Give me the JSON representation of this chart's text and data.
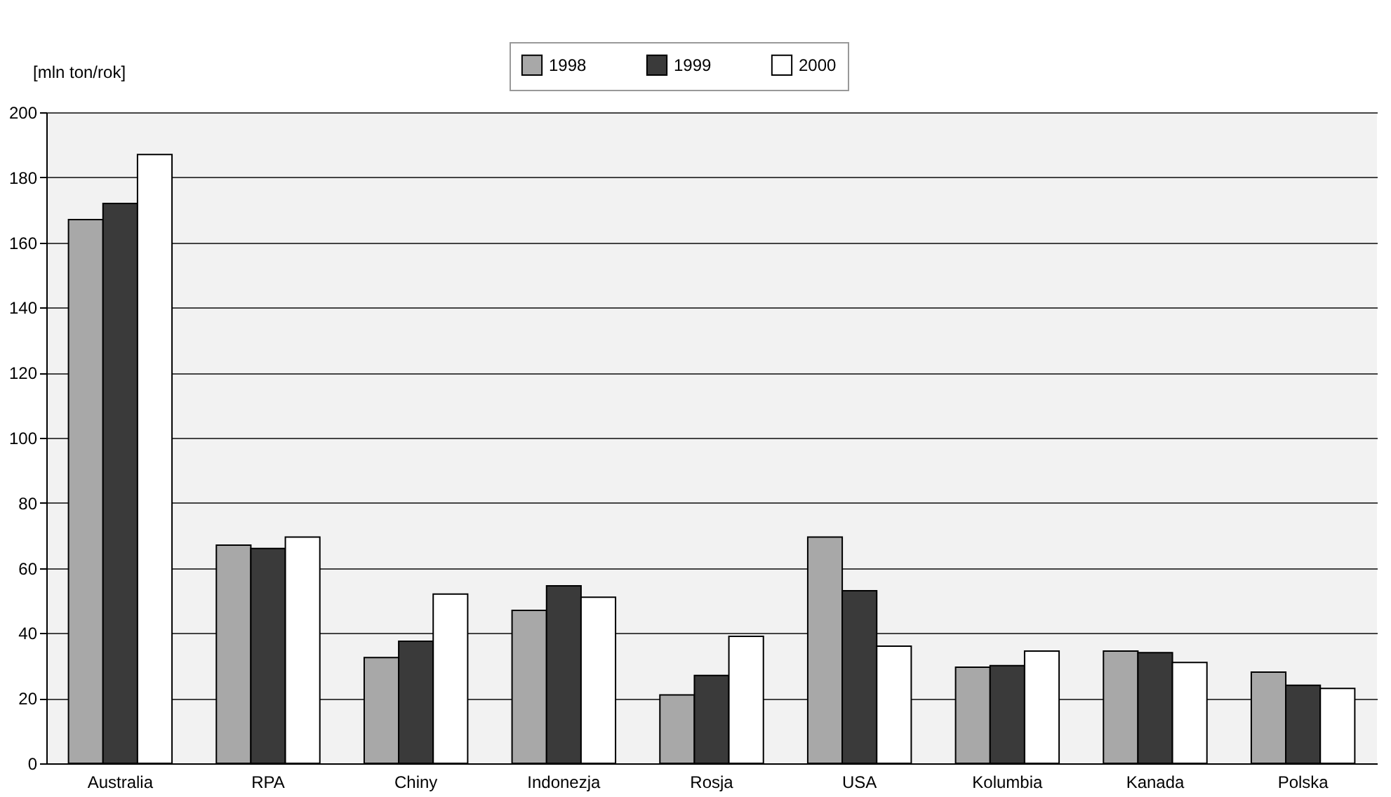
{
  "chart_data": {
    "type": "bar",
    "ylabel": "[mln ton/rok]",
    "categories": [
      "Australia",
      "RPA",
      "Chiny",
      "Indonezja",
      "Rosja",
      "USA",
      "Kolumbia",
      "Kanada",
      "Polska"
    ],
    "series": [
      {
        "name": "1998",
        "color": "#a8a8a8",
        "values": [
          167,
          67,
          32.5,
          47,
          21,
          69.5,
          29.5,
          34.5,
          28
        ]
      },
      {
        "name": "1999",
        "color": "#3a3a3a",
        "values": [
          172,
          66,
          37.5,
          54.5,
          27,
          53,
          30,
          34,
          24
        ]
      },
      {
        "name": "2000",
        "color": "#ffffff",
        "values": [
          187,
          69.5,
          52,
          51,
          39,
          36,
          34.5,
          31,
          23
        ]
      }
    ],
    "ylim": [
      0,
      200
    ],
    "yticks": [
      0,
      20,
      40,
      60,
      80,
      100,
      120,
      140,
      160,
      180,
      200
    ],
    "grid": "y",
    "legend": "top"
  }
}
